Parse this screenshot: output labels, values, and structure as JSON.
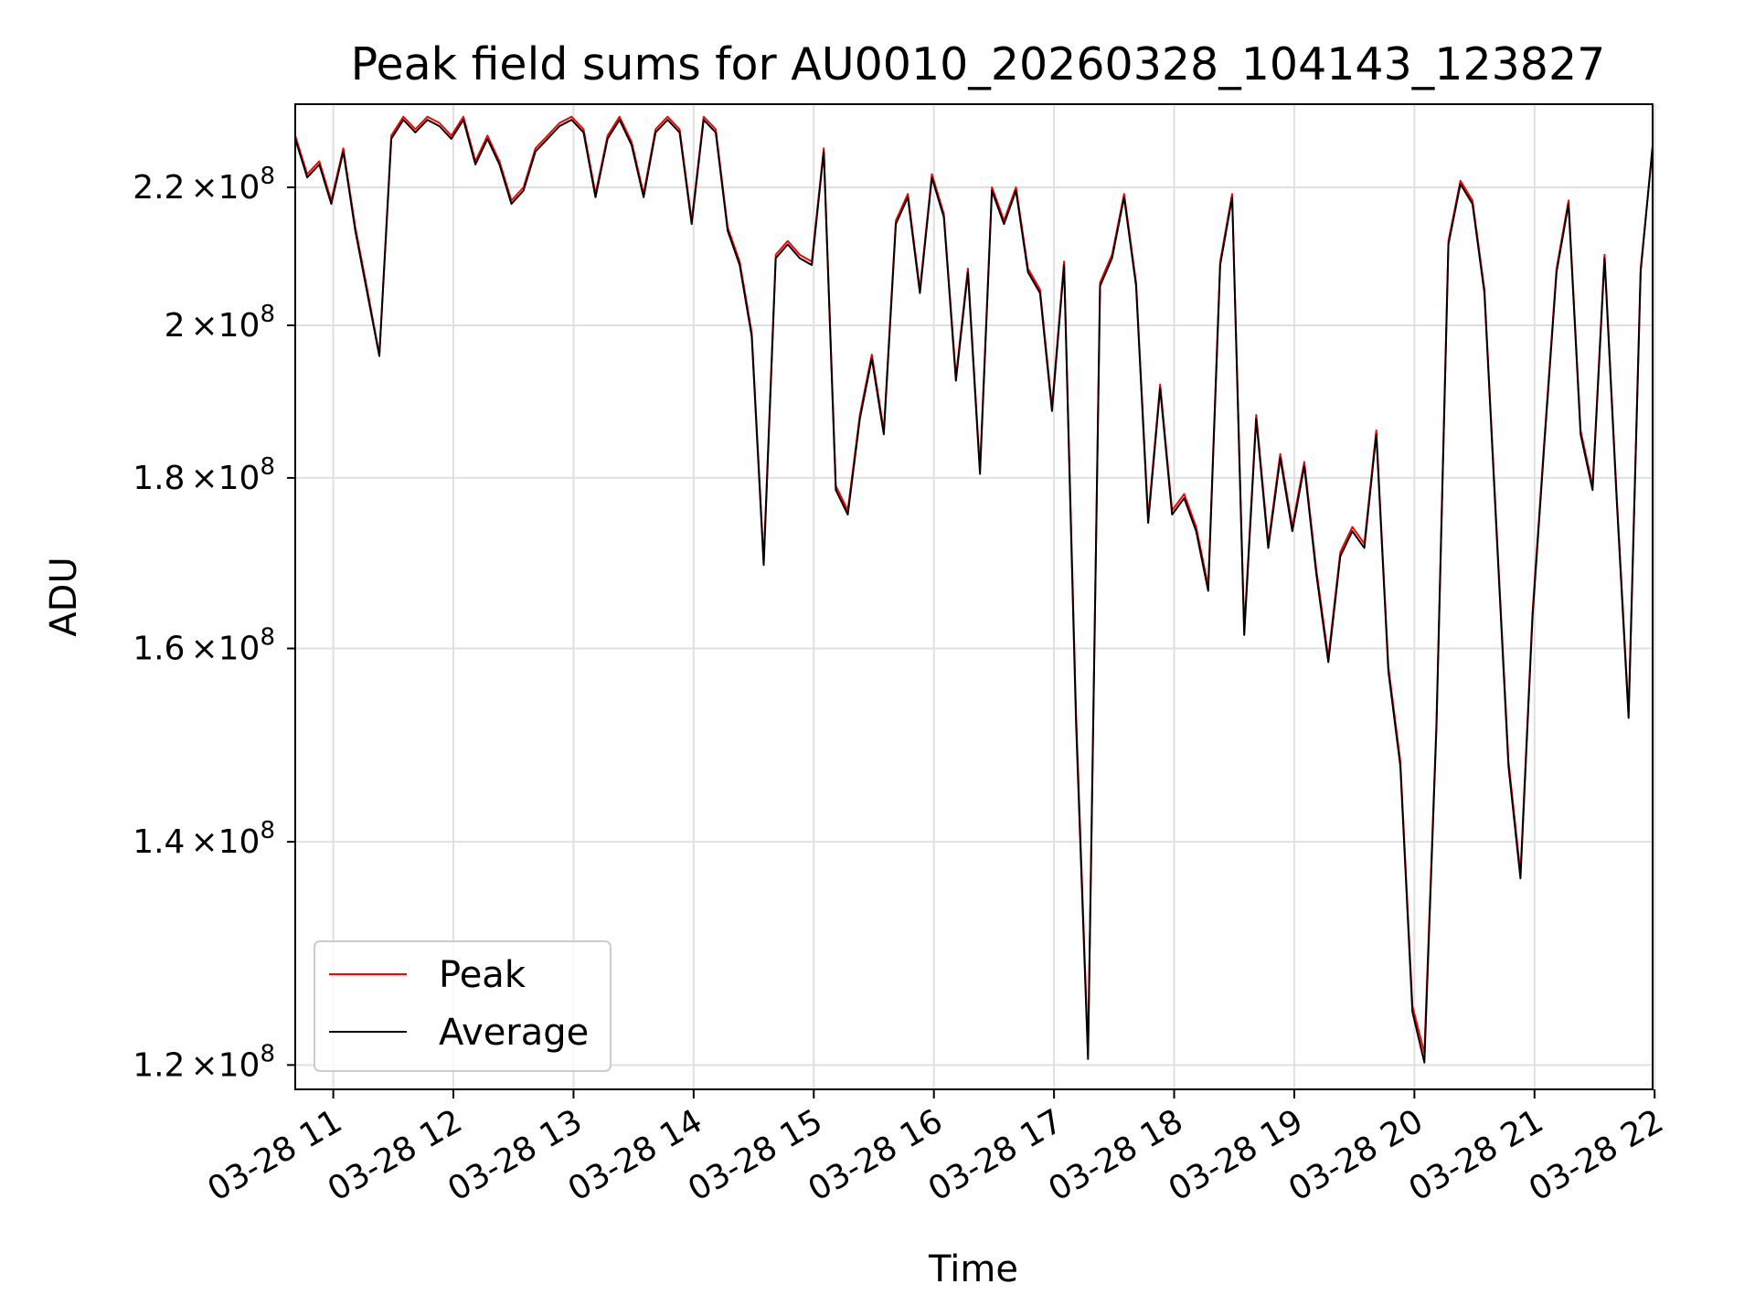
{
  "chart_data": {
    "type": "line",
    "title": "Peak field sums for AU0010_20260328_104143_123827",
    "xlabel": "Time",
    "ylabel": "ADU",
    "yscale": "log",
    "ylim": [
      118000000,
      233000000
    ],
    "xlim": [
      "03-28 10:41",
      "03-28 21:59"
    ],
    "x_ticks": [
      "03-28 11",
      "03-28 12",
      "03-28 13",
      "03-28 14",
      "03-28 15",
      "03-28 16",
      "03-28 17",
      "03-28 18",
      "03-28 19",
      "03-28 20",
      "03-28 21",
      "03-28 22"
    ],
    "y_ticks": [
      {
        "value": 120000000,
        "mantissa": "1.2",
        "base": "10",
        "exp": "8"
      },
      {
        "value": 140000000,
        "mantissa": "1.4",
        "base": "10",
        "exp": "8"
      },
      {
        "value": 160000000,
        "mantissa": "1.6",
        "base": "10",
        "exp": "8"
      },
      {
        "value": 180000000,
        "mantissa": "1.8",
        "base": "10",
        "exp": "8"
      },
      {
        "value": 200000000,
        "mantissa": "2",
        "base": "10",
        "exp": "8"
      },
      {
        "value": 220000000,
        "mantissa": "2.2",
        "base": "10",
        "exp": "8"
      }
    ],
    "grid": true,
    "legend_position": "lower-left",
    "series": [
      {
        "name": "Peak",
        "color": "#ff0000",
        "x": [
          "03-28 10:41",
          "03-28 10:47",
          "03-28 10:53",
          "03-28 10:59",
          "03-28 11:05",
          "03-28 11:11",
          "03-28 11:17",
          "03-28 11:23",
          "03-28 11:29",
          "03-28 11:35",
          "03-28 11:41",
          "03-28 11:47",
          "03-28 11:53",
          "03-28 11:59",
          "03-28 12:05",
          "03-28 12:11",
          "03-28 12:17",
          "03-28 12:23",
          "03-28 12:29",
          "03-28 12:35",
          "03-28 12:41",
          "03-28 12:47",
          "03-28 12:53",
          "03-28 12:59",
          "03-28 13:05",
          "03-28 13:11",
          "03-28 13:17",
          "03-28 13:23",
          "03-28 13:29",
          "03-28 13:35",
          "03-28 13:41",
          "03-28 13:47",
          "03-28 13:53",
          "03-28 13:59",
          "03-28 14:05",
          "03-28 14:11",
          "03-28 14:17",
          "03-28 14:23",
          "03-28 14:29",
          "03-28 14:35",
          "03-28 14:41",
          "03-28 14:47",
          "03-28 14:53",
          "03-28 14:59",
          "03-28 15:05",
          "03-28 15:11",
          "03-28 15:17",
          "03-28 15:23",
          "03-28 15:29",
          "03-28 15:35",
          "03-28 15:41",
          "03-28 15:47",
          "03-28 15:53",
          "03-28 15:59",
          "03-28 16:05",
          "03-28 16:11",
          "03-28 16:17",
          "03-28 16:23",
          "03-28 16:29",
          "03-28 16:35",
          "03-28 16:41",
          "03-28 16:47",
          "03-28 16:53",
          "03-28 16:59",
          "03-28 17:05",
          "03-28 17:11",
          "03-28 17:17",
          "03-28 17:23",
          "03-28 17:29",
          "03-28 17:35",
          "03-28 17:41",
          "03-28 17:47",
          "03-28 17:53",
          "03-28 17:59",
          "03-28 18:05",
          "03-28 18:11",
          "03-28 18:17",
          "03-28 18:23",
          "03-28 18:29",
          "03-28 18:35",
          "03-28 18:41",
          "03-28 18:47",
          "03-28 18:53",
          "03-28 18:59",
          "03-28 19:05",
          "03-28 19:11",
          "03-28 19:17",
          "03-28 19:23",
          "03-28 19:29",
          "03-28 19:35",
          "03-28 19:41",
          "03-28 19:47",
          "03-28 19:53",
          "03-28 19:59",
          "03-28 20:05",
          "03-28 20:11",
          "03-28 20:17",
          "03-28 20:23",
          "03-28 20:29",
          "03-28 20:35",
          "03-28 20:41",
          "03-28 20:47",
          "03-28 20:53",
          "03-28 20:59",
          "03-28 21:05",
          "03-28 21:11",
          "03-28 21:17",
          "03-28 21:23",
          "03-28 21:29",
          "03-28 21:35",
          "03-28 21:41",
          "03-28 21:47",
          "03-28 21:53",
          "03-28 21:59"
        ],
        "values": [
          228000000,
          222000000,
          224000000,
          218000000,
          226000000,
          214000000,
          205000000,
          196000000,
          228000000,
          231000000,
          229000000,
          231000000,
          230000000,
          228000000,
          231000000,
          224000000,
          228000000,
          224000000,
          218000000,
          220000000,
          226000000,
          228000000,
          230000000,
          231000000,
          229000000,
          219000000,
          228000000,
          231000000,
          227000000,
          219000000,
          229000000,
          231000000,
          229000000,
          215000000,
          231000000,
          229000000,
          214000000,
          209000000,
          199000000,
          170000000,
          210000000,
          212000000,
          210000000,
          209000000,
          226000000,
          179000000,
          176000000,
          188000000,
          196000000,
          186000000,
          215000000,
          219000000,
          205000000,
          222000000,
          216000000,
          193000000,
          208000000,
          181000000,
          220000000,
          215000000,
          220000000,
          208000000,
          205000000,
          189000000,
          209000000,
          153000000,
          121000000,
          206000000,
          210000000,
          219000000,
          206000000,
          175000000,
          192000000,
          176000000,
          178000000,
          174000000,
          167000000,
          209000000,
          219000000,
          162000000,
          188000000,
          172000000,
          183000000,
          174000000,
          182000000,
          169000000,
          159000000,
          171000000,
          174000000,
          172000000,
          186000000,
          158000000,
          148000000,
          125000000,
          121000000,
          152000000,
          212000000,
          221000000,
          218000000,
          205000000,
          174000000,
          148000000,
          137000000,
          164000000,
          185000000,
          208000000,
          218000000,
          186000000,
          179000000,
          210000000,
          178000000,
          153000000,
          208000000,
          226000000
        ],
        "note_y_units": "ADU"
      },
      {
        "name": "Average",
        "color": "#000000",
        "x": [
          "03-28 10:41",
          "03-28 10:47",
          "03-28 10:53",
          "03-28 10:59",
          "03-28 11:05",
          "03-28 11:11",
          "03-28 11:17",
          "03-28 11:23",
          "03-28 11:29",
          "03-28 11:35",
          "03-28 11:41",
          "03-28 11:47",
          "03-28 11:53",
          "03-28 11:59",
          "03-28 12:05",
          "03-28 12:11",
          "03-28 12:17",
          "03-28 12:23",
          "03-28 12:29",
          "03-28 12:35",
          "03-28 12:41",
          "03-28 12:47",
          "03-28 12:53",
          "03-28 12:59",
          "03-28 13:05",
          "03-28 13:11",
          "03-28 13:17",
          "03-28 13:23",
          "03-28 13:29",
          "03-28 13:35",
          "03-28 13:41",
          "03-28 13:47",
          "03-28 13:53",
          "03-28 13:59",
          "03-28 14:05",
          "03-28 14:11",
          "03-28 14:17",
          "03-28 14:23",
          "03-28 14:29",
          "03-28 14:35",
          "03-28 14:41",
          "03-28 14:47",
          "03-28 14:53",
          "03-28 14:59",
          "03-28 15:05",
          "03-28 15:11",
          "03-28 15:17",
          "03-28 15:23",
          "03-28 15:29",
          "03-28 15:35",
          "03-28 15:41",
          "03-28 15:47",
          "03-28 15:53",
          "03-28 15:59",
          "03-28 16:05",
          "03-28 16:11",
          "03-28 16:17",
          "03-28 16:23",
          "03-28 16:29",
          "03-28 16:35",
          "03-28 16:41",
          "03-28 16:47",
          "03-28 16:53",
          "03-28 16:59",
          "03-28 17:05",
          "03-28 17:11",
          "03-28 17:17",
          "03-28 17:23",
          "03-28 17:29",
          "03-28 17:35",
          "03-28 17:41",
          "03-28 17:47",
          "03-28 17:53",
          "03-28 17:59",
          "03-28 18:05",
          "03-28 18:11",
          "03-28 18:17",
          "03-28 18:23",
          "03-28 18:29",
          "03-28 18:35",
          "03-28 18:41",
          "03-28 18:47",
          "03-28 18:53",
          "03-28 18:59",
          "03-28 19:05",
          "03-28 19:11",
          "03-28 19:17",
          "03-28 19:23",
          "03-28 19:29",
          "03-28 19:35",
          "03-28 19:41",
          "03-28 19:47",
          "03-28 19:53",
          "03-28 19:59",
          "03-28 20:05",
          "03-28 20:11",
          "03-28 20:17",
          "03-28 20:23",
          "03-28 20:29",
          "03-28 20:35",
          "03-28 20:41",
          "03-28 20:47",
          "03-28 20:53",
          "03-28 20:59",
          "03-28 21:05",
          "03-28 21:11",
          "03-28 21:17",
          "03-28 21:23",
          "03-28 21:29",
          "03-28 21:35",
          "03-28 21:41",
          "03-28 21:47",
          "03-28 21:53",
          "03-28 21:59"
        ],
        "values": [
          227500000,
          221500000,
          223500000,
          217500000,
          225500000,
          213500000,
          204500000,
          195800000,
          227500000,
          230500000,
          228500000,
          230500000,
          229500000,
          227500000,
          230500000,
          223500000,
          227500000,
          223500000,
          217500000,
          219500000,
          225500000,
          227500000,
          229500000,
          230500000,
          228500000,
          218500000,
          227500000,
          230500000,
          226500000,
          218500000,
          228500000,
          230500000,
          228500000,
          214500000,
          230500000,
          228500000,
          213500000,
          208500000,
          198500000,
          169500000,
          209500000,
          211500000,
          209500000,
          208500000,
          225500000,
          178500000,
          175500000,
          187500000,
          195500000,
          185500000,
          214500000,
          218500000,
          204500000,
          221500000,
          215500000,
          192500000,
          207500000,
          180500000,
          219500000,
          214500000,
          219500000,
          207500000,
          204500000,
          188500000,
          208500000,
          152000000,
          120500000,
          205500000,
          209500000,
          218500000,
          205500000,
          174500000,
          191500000,
          175500000,
          177500000,
          173500000,
          166500000,
          208500000,
          218500000,
          161500000,
          187500000,
          171500000,
          182500000,
          173500000,
          181500000,
          168500000,
          158500000,
          170500000,
          173500000,
          171500000,
          185500000,
          157500000,
          147500000,
          124500000,
          120200000,
          151500000,
          211500000,
          220500000,
          217500000,
          204500000,
          173500000,
          147500000,
          136500000,
          163500000,
          184500000,
          207500000,
          217500000,
          185500000,
          178500000,
          209500000,
          177500000,
          152500000,
          207500000,
          226500000
        ]
      }
    ]
  }
}
